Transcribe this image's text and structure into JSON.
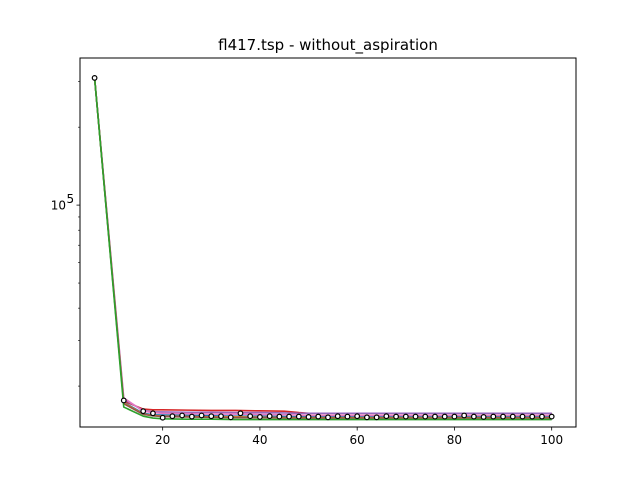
{
  "chart_data": {
    "type": "line",
    "title": "fl417.tsp - without_aspiration",
    "xlabel": "",
    "ylabel": "",
    "xlim": [
      3,
      105
    ],
    "ylim": [
      13900,
      370000
    ],
    "yscale": "log",
    "grid": false,
    "x_ticks": [
      20,
      40,
      60,
      80,
      100
    ],
    "x_tick_labels": [
      "20",
      "40",
      "60",
      "80",
      "100"
    ],
    "y_ticks": [
      100000
    ],
    "y_tick_labels": [
      {
        "base": "10",
        "exp": "5"
      }
    ],
    "series": [
      {
        "color": "#d62728",
        "x": [
          6,
          12,
          16,
          18,
          20,
          25,
          30,
          35,
          40,
          45,
          48,
          50,
          55,
          60,
          65,
          70,
          75,
          80,
          85,
          90,
          95,
          100
        ],
        "y": [
          310000,
          17500,
          16300,
          16200,
          16200,
          16150,
          16100,
          16100,
          16050,
          16000,
          15800,
          15700,
          15700,
          15700,
          15700,
          15700,
          15700,
          15700,
          15700,
          15700,
          15700,
          15700
        ]
      },
      {
        "color": "#9467bd",
        "x": [
          6,
          12,
          16,
          18,
          20,
          25,
          30,
          35,
          40,
          45,
          48,
          50,
          55,
          60,
          65,
          70,
          75,
          80,
          85,
          90,
          95,
          100
        ],
        "y": [
          310000,
          17800,
          16100,
          15900,
          15900,
          15850,
          15850,
          15800,
          15800,
          15750,
          15700,
          15700,
          15700,
          15700,
          15700,
          15700,
          15700,
          15700,
          15700,
          15700,
          15700,
          15700
        ]
      },
      {
        "color": "#e377c2",
        "x": [
          6,
          12,
          16,
          18,
          20,
          25,
          30,
          35,
          40,
          45,
          48,
          50,
          55,
          60,
          65,
          70,
          75,
          80,
          85,
          90,
          95,
          100
        ],
        "y": [
          310000,
          18000,
          16000,
          15800,
          15700,
          15650,
          15600,
          15600,
          15550,
          15500,
          15450,
          15400,
          15400,
          15400,
          15400,
          15400,
          15400,
          15400,
          15400,
          15400,
          15400,
          15400
        ]
      },
      {
        "color": "#1f77b4",
        "x": [
          6,
          12,
          16,
          18,
          20,
          25,
          30,
          35,
          40,
          45,
          50,
          55,
          60,
          65,
          70,
          75,
          80,
          85,
          90,
          95,
          100
        ],
        "y": [
          310000,
          17300,
          15700,
          15500,
          15450,
          15400,
          15350,
          15300,
          15300,
          15250,
          15200,
          15200,
          15200,
          15200,
          15200,
          15200,
          15200,
          15200,
          15200,
          15200,
          15200
        ]
      },
      {
        "color": "#ff7f0e",
        "x": [
          6,
          12,
          16,
          18,
          20,
          25,
          30,
          35,
          40,
          45,
          50,
          55,
          60,
          65,
          70,
          75,
          80,
          85,
          90,
          95,
          100
        ],
        "y": [
          310000,
          17200,
          15600,
          15400,
          15300,
          15250,
          15200,
          15200,
          15150,
          15100,
          15100,
          15100,
          15100,
          15100,
          15100,
          15100,
          15100,
          15100,
          15100,
          15100,
          15100
        ]
      },
      {
        "color": "#8c564b",
        "x": [
          6,
          12,
          16,
          18,
          20,
          25,
          30,
          35,
          40,
          45,
          50,
          55,
          60,
          65,
          70,
          75,
          80,
          85,
          90,
          95,
          100
        ],
        "y": [
          310000,
          17100,
          15550,
          15350,
          15250,
          15200,
          15150,
          15100,
          15100,
          15050,
          15050,
          15050,
          15050,
          15050,
          15050,
          15050,
          15050,
          15050,
          15050,
          15050,
          15050
        ]
      },
      {
        "color": "#2ca02c",
        "x": [
          6,
          12,
          16,
          18,
          20,
          25,
          30,
          35,
          40,
          45,
          50,
          55,
          60,
          65,
          70,
          75,
          80,
          85,
          90,
          95,
          100
        ],
        "y": [
          310000,
          16600,
          15300,
          15050,
          14950,
          14900,
          14900,
          14850,
          14850,
          14850,
          14850,
          14850,
          14850,
          14850,
          14850,
          14850,
          14850,
          14850,
          14850,
          14850,
          14850
        ]
      }
    ],
    "markers": {
      "style": "white-filled circle, black edge",
      "x": [
        6,
        12,
        16,
        18,
        20,
        22,
        24,
        26,
        28,
        30,
        32,
        34,
        36,
        38,
        40,
        42,
        44,
        46,
        48,
        50,
        52,
        54,
        56,
        58,
        60,
        62,
        64,
        66,
        68,
        70,
        72,
        74,
        76,
        78,
        80,
        82,
        84,
        86,
        88,
        90,
        92,
        94,
        96,
        98,
        100
      ],
      "y": [
        310000,
        17600,
        16000,
        15700,
        15100,
        15300,
        15400,
        15250,
        15400,
        15300,
        15300,
        15150,
        15700,
        15300,
        15200,
        15300,
        15250,
        15250,
        15250,
        15200,
        15250,
        15150,
        15300,
        15250,
        15300,
        15150,
        15150,
        15300,
        15250,
        15250,
        15250,
        15250,
        15250,
        15250,
        15250,
        15400,
        15250,
        15200,
        15250,
        15250,
        15250,
        15250,
        15250,
        15250,
        15250
      ]
    }
  }
}
